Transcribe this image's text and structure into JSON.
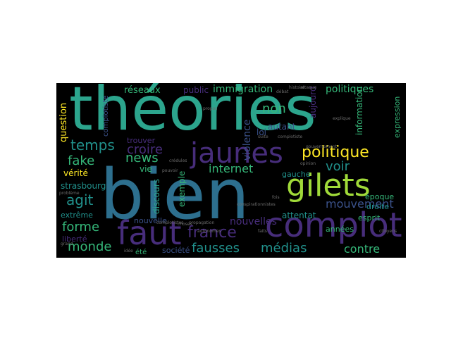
{
  "wordcloud": {
    "colors": {
      "teal": "#2ca58d",
      "blue": "#2d6f8e",
      "purple": "#472d7b",
      "lime": "#a0da39",
      "yellow": "#fde725",
      "green": "#35b779",
      "steel": "#3b528b",
      "cyan": "#21918c",
      "gray": "#6c6c6c"
    },
    "words": [
      {
        "text": "théories",
        "color": "#2ca58d"
      },
      {
        "text": "bien",
        "color": "#2d6f8e"
      },
      {
        "text": "complot",
        "color": "#472d7b"
      },
      {
        "text": "faut",
        "color": "#472d7b"
      },
      {
        "text": "jaunes",
        "color": "#472d7b"
      },
      {
        "text": "gilets",
        "color": "#a0da39"
      },
      {
        "text": "politique",
        "color": "#fde725"
      },
      {
        "text": "mouvement",
        "color": "#3b528b"
      },
      {
        "text": "france",
        "color": "#472d7b"
      },
      {
        "text": "fausses",
        "color": "#21918c"
      },
      {
        "text": "médias",
        "color": "#21918c"
      },
      {
        "text": "contre",
        "color": "#35b779"
      },
      {
        "text": "temps",
        "color": "#21918c"
      },
      {
        "text": "croire",
        "color": "#472d7b"
      },
      {
        "text": "internet",
        "color": "#35b779"
      },
      {
        "text": "voir",
        "color": "#21918c"
      },
      {
        "text": "non",
        "color": "#35b779"
      },
      {
        "text": "agit",
        "color": "#21918c"
      },
      {
        "text": "fake",
        "color": "#35b779"
      },
      {
        "text": "news",
        "color": "#35b779"
      },
      {
        "text": "forme",
        "color": "#35b779"
      },
      {
        "text": "monde",
        "color": "#35b779"
      },
      {
        "text": "nouvelles",
        "color": "#472d7b"
      },
      {
        "text": "réseaux",
        "color": "#35b779"
      },
      {
        "text": "immigration",
        "color": "#35b779"
      },
      {
        "text": "politiques",
        "color": "#35b779"
      },
      {
        "text": "question",
        "color": "#fde725"
      },
      {
        "text": "complotiste",
        "color": "#3b528b"
      },
      {
        "text": "public",
        "color": "#472d7b"
      },
      {
        "text": "violence",
        "color": "#3b528b"
      },
      {
        "text": "vérité",
        "color": "#fde725"
      },
      {
        "text": "strasbourg",
        "color": "#21918c"
      },
      {
        "text": "attentat",
        "color": "#21918c"
      },
      {
        "text": "nouvelle",
        "color": "#3b528b"
      },
      {
        "text": "société",
        "color": "#3b528b"
      },
      {
        "text": "discours",
        "color": "#2ca58d"
      },
      {
        "text": "exemple",
        "color": "#35b779"
      },
      {
        "text": "trouver",
        "color": "#472d7b"
      },
      {
        "text": "vie",
        "color": "#35b779"
      },
      {
        "text": "information",
        "color": "#35b779"
      },
      {
        "text": "expression",
        "color": "#35b779"
      },
      {
        "text": "aujourd",
        "color": "#472d7b"
      },
      {
        "text": "autant",
        "color": "#3b528b"
      },
      {
        "text": "loi",
        "color": "#3b528b"
      },
      {
        "text": "gauche",
        "color": "#21918c"
      },
      {
        "text": "années",
        "color": "#35b779"
      },
      {
        "text": "esprit",
        "color": "#35b779"
      },
      {
        "text": "droite",
        "color": "#21918c"
      },
      {
        "text": "époque",
        "color": "#35b779"
      },
      {
        "text": "extrême",
        "color": "#21918c"
      },
      {
        "text": "liberté",
        "color": "#472d7b"
      },
      {
        "text": "été",
        "color": "#35b779"
      },
      {
        "text": "problème",
        "color": "#6c6c6c"
      },
      {
        "text": "grand",
        "color": "#6c6c6c"
      },
      {
        "text": "idée",
        "color": "#6c6c6c"
      },
      {
        "text": "fois",
        "color": "#6c6c6c"
      },
      {
        "text": "crédules",
        "color": "#6c6c6c"
      },
      {
        "text": "choses",
        "color": "#6c6c6c"
      },
      {
        "text": "propos",
        "color": "#6c6c6c"
      },
      {
        "text": "explique",
        "color": "#6c6c6c"
      },
      {
        "text": "gouvernement",
        "color": "#6c6c6c"
      },
      {
        "text": "complotiste",
        "color": "#6c6c6c"
      },
      {
        "text": "suite",
        "color": "#6c6c6c"
      },
      {
        "text": "faits",
        "color": "#6c6c6c"
      },
      {
        "text": "citoyens",
        "color": "#6c6c6c"
      },
      {
        "text": "histoire",
        "color": "#6c6c6c"
      },
      {
        "text": "attaque",
        "color": "#6c6c6c"
      },
      {
        "text": "débat",
        "color": "#6c6c6c"
      },
      {
        "text": "propagation",
        "color": "#6c6c6c"
      },
      {
        "text": "autonomes",
        "color": "#6c6c6c"
      },
      {
        "text": "opinion",
        "color": "#6c6c6c"
      },
      {
        "text": "pouvoir",
        "color": "#6c6c6c"
      },
      {
        "text": "complotistes",
        "color": "#6c6c6c"
      },
      {
        "text": "conspirationnistes",
        "color": "#6c6c6c"
      }
    ]
  }
}
